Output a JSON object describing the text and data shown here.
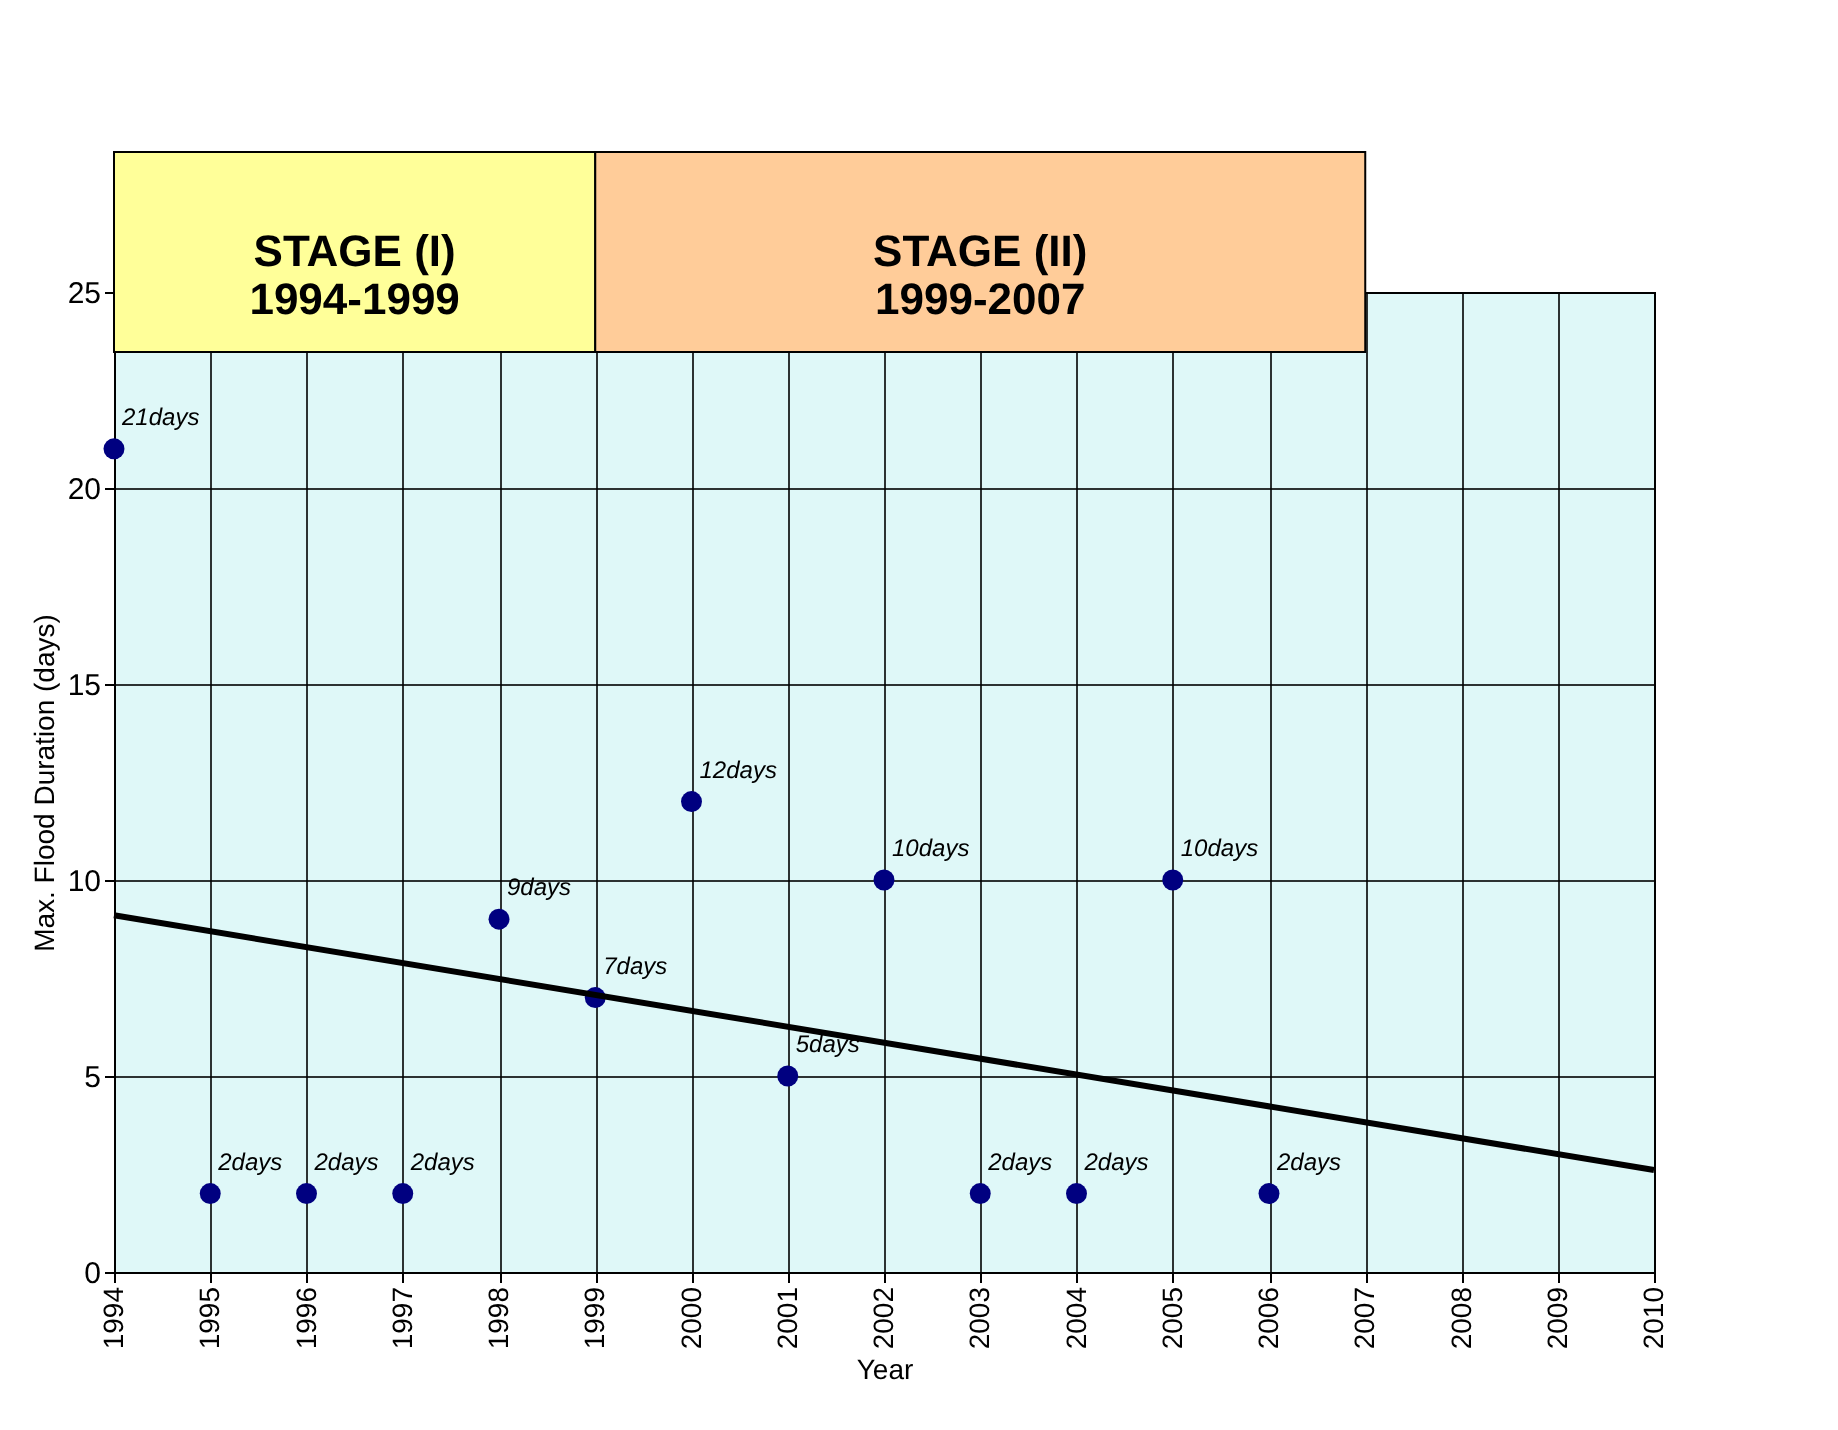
{
  "chart_data": {
    "type": "scatter",
    "xlabel": "Year",
    "ylabel": "Max. Flood Duration (days)",
    "xlim": [
      1994,
      2010
    ],
    "xticks": [
      1994,
      1995,
      1996,
      1997,
      1998,
      1999,
      2000,
      2001,
      2002,
      2003,
      2004,
      2005,
      2006,
      2007,
      2008,
      2009,
      2010
    ],
    "ylim": [
      0,
      25
    ],
    "yticks": [
      0,
      5,
      10,
      15,
      20,
      25
    ],
    "grid": true,
    "series": [
      {
        "color": "#000080",
        "marker": "circle",
        "x": [
          1994,
          1995,
          1996,
          1997,
          1998,
          1999,
          2000,
          2001,
          2002,
          2003,
          2004,
          2005,
          2006
        ],
        "values": [
          21,
          2,
          2,
          2,
          9,
          7,
          12,
          5,
          10,
          2,
          2,
          10,
          2
        ],
        "value_labels": [
          "21days",
          "2days",
          "2days",
          "2days",
          "9days",
          "7days",
          "12days",
          "5days",
          "10days",
          "2days",
          "2days",
          "10days",
          "2days"
        ]
      },
      {
        "type": "line",
        "marker": "none",
        "color": "#000000",
        "x": [
          1994,
          2010
        ],
        "values": [
          9.1,
          2.6
        ]
      }
    ],
    "bands": [
      {
        "axis": "x",
        "from": 1994,
        "to": 1999,
        "label": "STAGE (I)\n1994-1999",
        "color": "#ffff99"
      },
      {
        "axis": "x",
        "from": 1999,
        "to": 2007,
        "label": "STAGE (II)\n1999-2007",
        "color": "#ffcc99"
      }
    ]
  }
}
